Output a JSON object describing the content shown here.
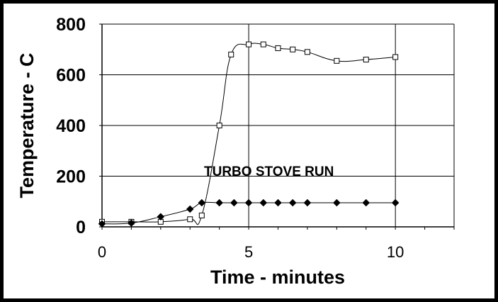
{
  "chart_data": {
    "type": "line",
    "title": "",
    "xlabel": "Time - minutes",
    "ylabel": "Temperature - C",
    "xlim": [
      0,
      12
    ],
    "ylim": [
      0,
      800
    ],
    "xticks": [
      0,
      5,
      10
    ],
    "yticks": [
      0,
      200,
      400,
      600,
      800
    ],
    "grid": "horizontal",
    "annotation": "TURBO STOVE RUN",
    "series": [
      {
        "marker": "square",
        "color": "#000000",
        "x": [
          0,
          1,
          2,
          3,
          3.4,
          4,
          4.4,
          5,
          5.5,
          6,
          6.5,
          7,
          8,
          9,
          10
        ],
        "y": [
          20,
          20,
          20,
          30,
          45,
          400,
          680,
          720,
          720,
          705,
          700,
          690,
          655,
          660,
          670
        ]
      },
      {
        "marker": "diamond",
        "color": "#000000",
        "x": [
          0,
          1,
          2,
          3,
          3.4,
          4,
          4.5,
          5,
          5.5,
          6,
          6.5,
          7,
          8,
          9,
          10
        ],
        "y": [
          12,
          15,
          40,
          70,
          95,
          95,
          95,
          95,
          95,
          95,
          95,
          95,
          95,
          95,
          95
        ]
      }
    ]
  }
}
